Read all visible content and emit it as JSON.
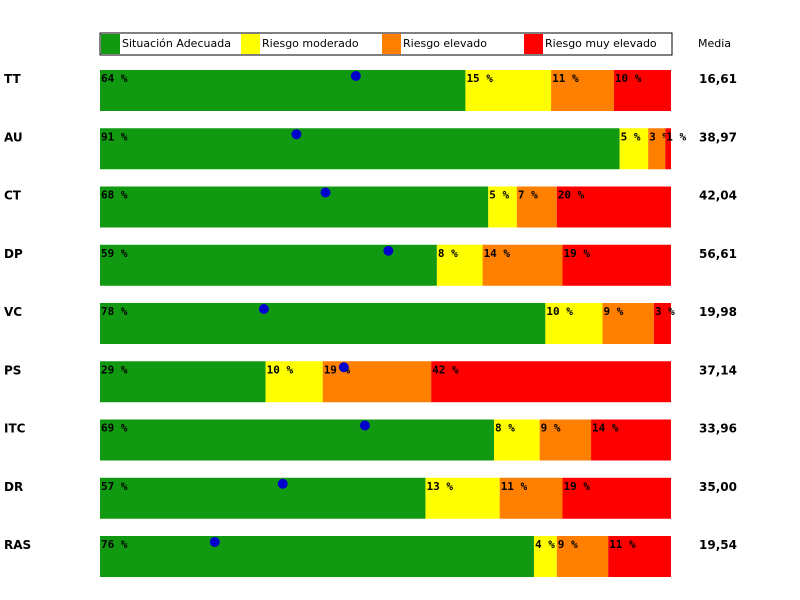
{
  "chart_data": {
    "type": "bar",
    "stacked": "horizontal-100",
    "media_header": "Media",
    "legend": [
      {
        "label": "Situación Adecuada",
        "color": "#119911"
      },
      {
        "label": "Riesgo moderado",
        "color": "#ffff00"
      },
      {
        "label": "Riesgo elevado",
        "color": "#ff7f00"
      },
      {
        "label": "Riesgo muy elevado",
        "color": "#ff0000"
      }
    ],
    "dot_color": "#0000cc",
    "rows": [
      {
        "category": "TT",
        "values": [
          64,
          15,
          11,
          10
        ],
        "labels": [
          "64 %",
          "15 %",
          "11 %",
          "10 %"
        ],
        "media": "16,61",
        "marker": 44.8
      },
      {
        "category": "AU",
        "values": [
          91,
          5,
          3,
          1
        ],
        "labels": [
          "91 %",
          "5 %",
          "3 %",
          "1 %"
        ],
        "media": "38,97",
        "marker": 34.4
      },
      {
        "category": "CT",
        "values": [
          68,
          5,
          7,
          20
        ],
        "labels": [
          "68 %",
          "5 %",
          "7 %",
          "20 %"
        ],
        "media": "42,04",
        "marker": 39.5
      },
      {
        "category": "DP",
        "values": [
          59,
          8,
          14,
          19
        ],
        "labels": [
          "59 %",
          "8 %",
          "14 %",
          "19 %"
        ],
        "media": "56,61",
        "marker": 50.5
      },
      {
        "category": "VC",
        "values": [
          78,
          10,
          9,
          3
        ],
        "labels": [
          "78 %",
          "10 %",
          "9 %",
          "3 %"
        ],
        "media": "19,98",
        "marker": 28.7
      },
      {
        "category": "PS",
        "values": [
          29,
          10,
          19,
          42
        ],
        "labels": [
          "29 %",
          "10 %",
          "19 %",
          "42 %"
        ],
        "media": "37,14",
        "marker": 42.7
      },
      {
        "category": "ITC",
        "values": [
          69,
          8,
          9,
          14
        ],
        "labels": [
          "69 %",
          "8 %",
          "9 %",
          "14 %"
        ],
        "media": "33,96",
        "marker": 46.4
      },
      {
        "category": "DR",
        "values": [
          57,
          13,
          11,
          19
        ],
        "labels": [
          "57 %",
          "13 %",
          "11 %",
          "19 %"
        ],
        "media": "35,00",
        "marker": 32.0
      },
      {
        "category": "RAS",
        "values": [
          76,
          4,
          9,
          11
        ],
        "labels": [
          "76 %",
          "4 %",
          "9 %",
          "11 %"
        ],
        "media": "19,54",
        "marker": 20.1
      }
    ]
  }
}
